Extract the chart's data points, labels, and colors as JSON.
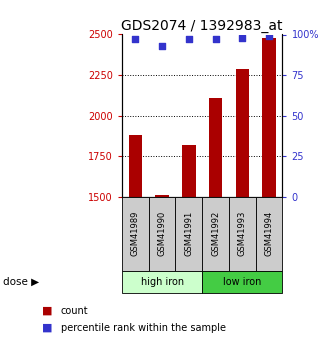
{
  "title": "GDS2074 / 1392983_at",
  "samples": [
    "GSM41989",
    "GSM41990",
    "GSM41991",
    "GSM41992",
    "GSM41993",
    "GSM41994"
  ],
  "counts": [
    1880,
    1510,
    1820,
    2110,
    2290,
    2480
  ],
  "percentiles": [
    97,
    93,
    97,
    97,
    98,
    99
  ],
  "bar_color": "#aa0000",
  "dot_color": "#3333cc",
  "ylim_left": [
    1500,
    2500
  ],
  "ylim_right": [
    0,
    100
  ],
  "yticks_left": [
    1500,
    1750,
    2000,
    2250,
    2500
  ],
  "yticks_right": [
    0,
    25,
    50,
    75,
    100
  ],
  "ytick_labels_right": [
    "0",
    "25",
    "50",
    "75",
    "100%"
  ],
  "grid_ticks": [
    1750,
    2000,
    2250
  ],
  "title_fontsize": 10,
  "left_tick_color": "#cc0000",
  "right_tick_color": "#3333cc",
  "sample_box_color": "#cccccc",
  "high_iron_color": "#ccffcc",
  "low_iron_color": "#44cc44"
}
